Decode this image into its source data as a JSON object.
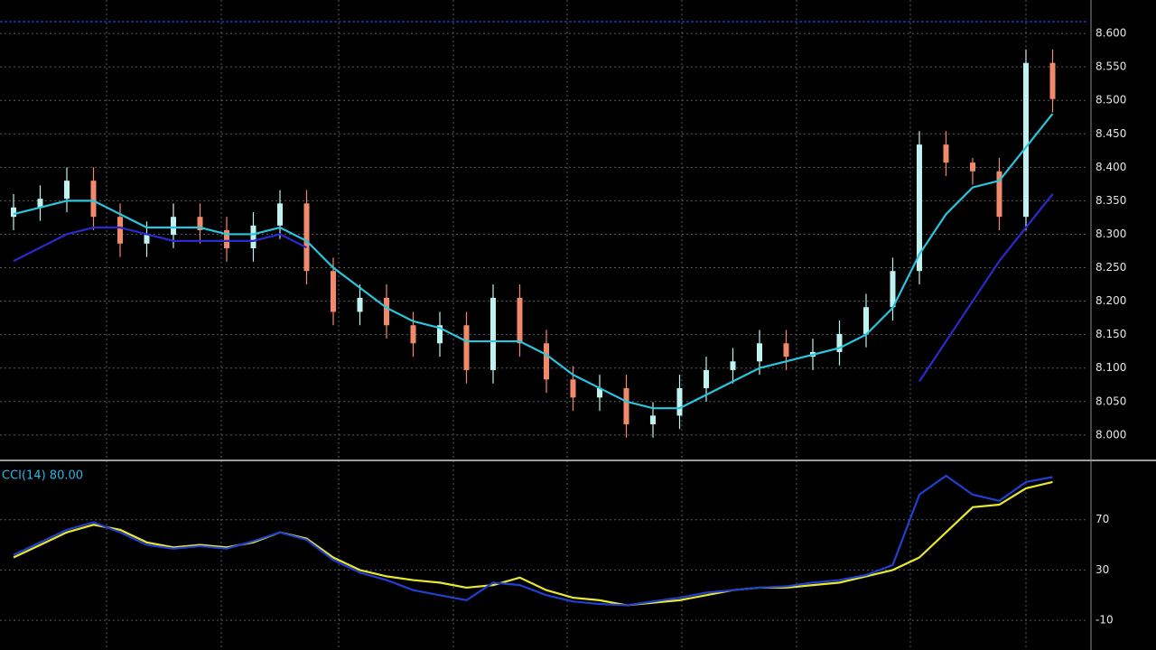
{
  "chart_data": [
    {
      "type": "candlestick",
      "up_color": "#bff3f0",
      "down_color": "#f08a6a",
      "ylim": [
        7.962,
        8.65
      ],
      "yticks": [
        {
          "value": 8.6,
          "label": "8.600"
        },
        {
          "value": 8.55,
          "label": "8.550"
        },
        {
          "value": 8.5,
          "label": "8.500"
        },
        {
          "value": 8.45,
          "label": "8.450"
        },
        {
          "value": 8.4,
          "label": "8.400"
        },
        {
          "value": 8.35,
          "label": "8.350"
        },
        {
          "value": 8.3,
          "label": "8.300"
        },
        {
          "value": 8.25,
          "label": "8.250"
        },
        {
          "value": 8.2,
          "label": "8.200"
        },
        {
          "value": 8.15,
          "label": "8.150"
        },
        {
          "value": 8.1,
          "label": "8.100"
        },
        {
          "value": 8.05,
          "label": "8.050"
        },
        {
          "value": 8.0,
          "label": "8.000"
        }
      ],
      "grid": true,
      "open": [
        8.326,
        8.34,
        8.353,
        8.38,
        8.326,
        8.286,
        8.299,
        8.326,
        8.306,
        8.279,
        8.313,
        8.346,
        8.245,
        8.184,
        8.205,
        8.164,
        8.137,
        8.164,
        8.097,
        8.205,
        8.137,
        8.083,
        8.056,
        8.07,
        8.016,
        8.029,
        8.07,
        8.097,
        8.11,
        8.137,
        8.117,
        8.124,
        8.151,
        8.191,
        8.245,
        8.434,
        8.407,
        8.394,
        8.326,
        8.556
      ],
      "close": [
        8.34,
        8.353,
        8.38,
        8.326,
        8.286,
        8.299,
        8.326,
        8.306,
        8.279,
        8.313,
        8.346,
        8.245,
        8.184,
        8.205,
        8.164,
        8.137,
        8.164,
        8.097,
        8.205,
        8.137,
        8.083,
        8.056,
        8.07,
        8.016,
        8.029,
        8.07,
        8.097,
        8.11,
        8.137,
        8.117,
        8.124,
        8.151,
        8.191,
        8.245,
        8.434,
        8.407,
        8.394,
        8.326,
        8.556,
        8.502
      ],
      "high": [
        8.36,
        8.373,
        8.4,
        8.4,
        8.346,
        8.319,
        8.346,
        8.346,
        8.326,
        8.333,
        8.366,
        8.366,
        8.265,
        8.225,
        8.225,
        8.184,
        8.184,
        8.184,
        8.225,
        8.225,
        8.157,
        8.103,
        8.09,
        8.09,
        8.049,
        8.09,
        8.117,
        8.13,
        8.157,
        8.157,
        8.144,
        8.171,
        8.211,
        8.265,
        8.454,
        8.454,
        8.414,
        8.414,
        8.576,
        8.576
      ],
      "low": [
        8.306,
        8.32,
        8.333,
        8.306,
        8.266,
        8.266,
        8.279,
        8.286,
        8.259,
        8.259,
        8.293,
        8.225,
        8.164,
        8.164,
        8.144,
        8.117,
        8.117,
        8.077,
        8.077,
        8.117,
        8.063,
        8.036,
        8.036,
        7.996,
        7.996,
        8.009,
        8.05,
        8.077,
        8.09,
        8.097,
        8.097,
        8.104,
        8.131,
        8.171,
        8.225,
        8.387,
        8.374,
        8.306,
        8.306,
        8.482
      ],
      "series": [
        {
          "color": "#29c6e0",
          "values": [
            8.33,
            8.34,
            8.35,
            8.35,
            8.33,
            8.31,
            8.31,
            8.31,
            8.3,
            8.3,
            8.31,
            8.29,
            8.25,
            8.22,
            8.19,
            8.17,
            8.16,
            8.14,
            8.14,
            8.14,
            8.12,
            8.09,
            8.07,
            8.05,
            8.04,
            8.04,
            8.06,
            8.08,
            8.1,
            8.11,
            8.12,
            8.13,
            8.15,
            8.19,
            8.27,
            8.33,
            8.37,
            8.38,
            8.43,
            8.48
          ]
        },
        {
          "color": "#2a2ad0",
          "values": [
            8.26,
            8.28,
            8.3,
            8.31,
            8.31,
            8.3,
            8.29,
            8.29,
            8.29,
            8.29,
            8.3,
            8.28,
            null,
            null,
            null,
            null,
            null,
            null,
            null,
            null,
            null,
            null,
            null,
            null,
            null,
            null,
            null,
            null,
            null,
            null,
            null,
            null,
            null,
            null,
            8.08,
            8.14,
            8.2,
            8.26,
            8.31,
            8.36
          ]
        }
      ]
    },
    {
      "type": "line",
      "title": "CCI(14) 80.00",
      "ylim": [
        -30,
        110
      ],
      "yticks": [
        -10,
        30,
        70
      ],
      "grid": true,
      "series": [
        {
          "color": "#e8e830",
          "values": [
            40,
            50,
            60,
            66,
            62,
            52,
            48,
            50,
            48,
            52,
            60,
            55,
            40,
            30,
            25,
            22,
            20,
            16,
            18,
            24,
            14,
            8,
            6,
            2,
            4,
            6,
            10,
            14,
            16,
            16,
            18,
            20,
            25,
            30,
            40,
            60,
            80,
            82,
            95,
            100
          ]
        },
        {
          "color": "#2040d0",
          "values": [
            42,
            52,
            62,
            68,
            60,
            50,
            47,
            49,
            47,
            53,
            60,
            54,
            38,
            28,
            22,
            14,
            10,
            6,
            20,
            18,
            10,
            5,
            3,
            2,
            5,
            8,
            12,
            14,
            16,
            17,
            20,
            22,
            26,
            34,
            90,
            105,
            90,
            85,
            100,
            104
          ]
        }
      ]
    }
  ]
}
